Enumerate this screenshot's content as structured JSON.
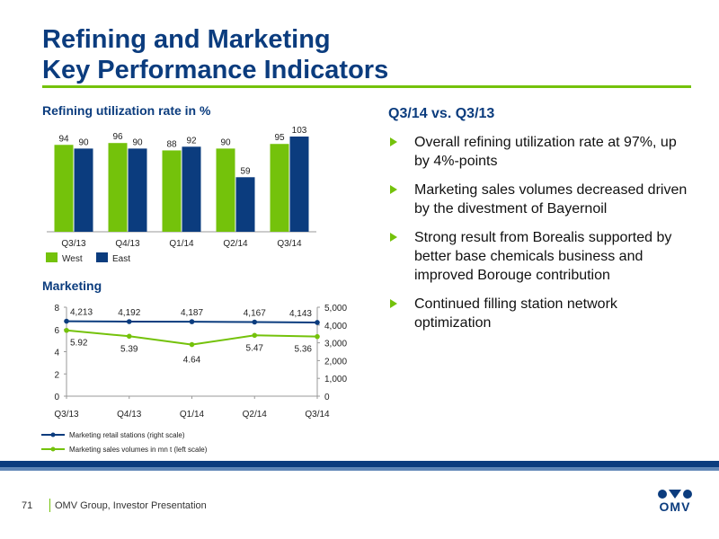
{
  "header": {
    "title_line1": "Refining and Marketing",
    "title_line2": "Key Performance Indicators"
  },
  "left": {
    "refining_heading": "Refining utilization rate in %",
    "marketing_heading": "Marketing"
  },
  "right": {
    "heading": "Q3/14 vs. Q3/13",
    "bullets": [
      "Overall refining utilization rate at 97%, up by 4%-points",
      "Marketing sales volumes decreased driven by the divestment of Bayernoil",
      "Strong result from Borealis supported by better base chemicals business and improved Borouge contribution",
      "Continued filling station network optimization"
    ]
  },
  "footer": {
    "page_number": "71",
    "text": "OMV Group, Investor Presentation",
    "logo_text": "OMV"
  },
  "colors": {
    "brand_blue": "#0b3c7e",
    "brand_green": "#74c20b",
    "west": "#74c20b",
    "east": "#0b3c7e",
    "gray_axis": "#999999"
  },
  "icons": {
    "bullet": "green-triangle-arrow-icon",
    "logo": "omv-logo-icon"
  },
  "chart_data": [
    {
      "type": "bar",
      "title": "Refining utilization rate in %",
      "categories": [
        "Q3/13",
        "Q4/13",
        "Q1/14",
        "Q2/14",
        "Q3/14"
      ],
      "series": [
        {
          "name": "West",
          "values": [
            94,
            96,
            88,
            90,
            95
          ],
          "color": "#74c20b"
        },
        {
          "name": "East",
          "values": [
            90,
            90,
            92,
            59,
            103
          ],
          "color": "#0b3c7e"
        }
      ],
      "legend": "bottom-left",
      "grid": false
    },
    {
      "type": "line",
      "title": "Marketing",
      "categories": [
        "Q3/13",
        "Q4/13",
        "Q1/14",
        "Q2/14",
        "Q3/14"
      ],
      "series": [
        {
          "name": "Marketing retail stations (right scale)",
          "values": [
            4213,
            4192,
            4187,
            4167,
            4143
          ],
          "labels": [
            "4,213",
            "4,192",
            "4,187",
            "4,167",
            "4,143"
          ],
          "axis": "right",
          "color": "#0b3c7e"
        },
        {
          "name": "Marketing sales volumes in mn t (left scale)",
          "values": [
            5.92,
            5.39,
            4.64,
            5.47,
            5.36
          ],
          "labels": [
            "5.92",
            "5.39",
            "4.64",
            "5.47",
            "5.36"
          ],
          "axis": "left",
          "color": "#74c20b"
        }
      ],
      "y_left": {
        "ylim": [
          0,
          8
        ],
        "ticks": [
          0,
          2,
          4,
          6,
          8
        ],
        "tick_labels": [
          "0",
          "2",
          "4",
          "6",
          "8"
        ]
      },
      "y_right": {
        "ylim": [
          0,
          5000
        ],
        "ticks": [
          0,
          1000,
          2000,
          3000,
          4000,
          5000
        ],
        "tick_labels": [
          "0",
          "1,000",
          "2,000",
          "3,000",
          "4,000",
          "5,000"
        ]
      },
      "legend": "bottom",
      "grid": false
    }
  ]
}
